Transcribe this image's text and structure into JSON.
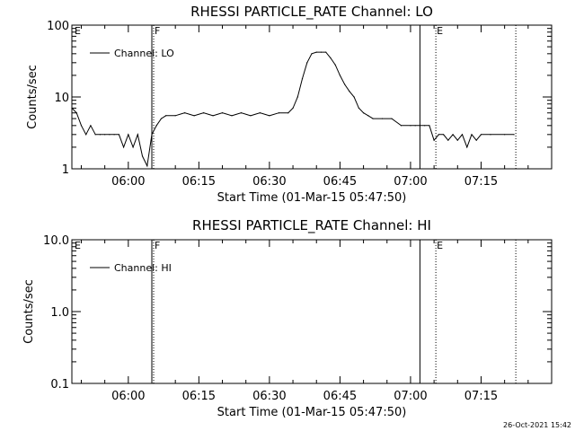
{
  "chart_data": [
    {
      "type": "line",
      "title": "RHESSI PARTICLE_RATE Channel: LO",
      "xlabel": "Start Time (01-Mar-15 05:47:50)",
      "ylabel": "Counts/sec",
      "yscale": "log",
      "ylim": [
        1,
        100
      ],
      "yticks": [
        "1",
        "10",
        "100"
      ],
      "xlim": [
        "05:48",
        "07:30"
      ],
      "xticks": [
        "06:00",
        "06:15",
        "06:30",
        "06:45",
        "07:00",
        "07:15"
      ],
      "legend_position": "top-left",
      "grid": false,
      "series": [
        {
          "name": "Channel: LO",
          "x": [
            "05:48",
            "05:49",
            "05:50",
            "05:51",
            "05:52",
            "05:53",
            "05:54",
            "05:55",
            "05:56",
            "05:57",
            "05:58",
            "05:59",
            "06:00",
            "06:01",
            "06:02",
            "06:03",
            "06:04",
            "06:05",
            "06:06",
            "06:07",
            "06:08",
            "06:10",
            "06:12",
            "06:14",
            "06:16",
            "06:18",
            "06:20",
            "06:22",
            "06:24",
            "06:26",
            "06:28",
            "06:30",
            "06:32",
            "06:34",
            "06:35",
            "06:36",
            "06:37",
            "06:38",
            "06:39",
            "06:40",
            "06:41",
            "06:42",
            "06:43",
            "06:44",
            "06:45",
            "06:46",
            "06:47",
            "06:48",
            "06:49",
            "06:50",
            "06:51",
            "06:52",
            "06:54",
            "06:56",
            "06:58",
            "07:00",
            "07:01",
            "07:02",
            "07:03",
            "07:04",
            "07:05",
            "07:06",
            "07:07",
            "07:08",
            "07:09",
            "07:10",
            "07:11",
            "07:12",
            "07:13",
            "07:14",
            "07:15",
            "07:17",
            "07:20",
            "07:22"
          ],
          "y": [
            7,
            6,
            4,
            3,
            4,
            3,
            3,
            3,
            3,
            3,
            3,
            2,
            3,
            2,
            3,
            1.5,
            1.1,
            3,
            4,
            5,
            5.5,
            5.5,
            6,
            5.5,
            6,
            5.5,
            6,
            5.5,
            6,
            5.5,
            6,
            5.5,
            6,
            6,
            7,
            10,
            18,
            30,
            40,
            42,
            42,
            42,
            35,
            28,
            20,
            15,
            12,
            10,
            7,
            6,
            5.5,
            5,
            5,
            5,
            4,
            4,
            4,
            4,
            4,
            4,
            2.5,
            3,
            3,
            2.5,
            3,
            2.5,
            3,
            2,
            3,
            2.5,
            3,
            3,
            3,
            3
          ]
        }
      ],
      "annotations": [
        {
          "label": "E",
          "x": "05:48"
        },
        {
          "label": "F",
          "x": "06:05"
        },
        {
          "label": "E",
          "x": "07:05"
        }
      ]
    },
    {
      "type": "line",
      "title": "RHESSI PARTICLE_RATE Channel: HI",
      "xlabel": "Start Time (01-Mar-15 05:47:50)",
      "ylabel": "Counts/sec",
      "yscale": "log",
      "ylim": [
        0.1,
        10
      ],
      "yticks": [
        "0.1",
        "1.0",
        "10.0"
      ],
      "xlim": [
        "05:48",
        "07:30"
      ],
      "xticks": [
        "06:00",
        "06:15",
        "06:30",
        "06:45",
        "07:00",
        "07:15"
      ],
      "legend_position": "top-left",
      "grid": false,
      "series": [
        {
          "name": "Channel: HI",
          "x": [],
          "y": []
        }
      ],
      "annotations": [
        {
          "label": "E",
          "x": "05:48"
        },
        {
          "label": "F",
          "x": "06:05"
        },
        {
          "label": "E",
          "x": "07:05"
        }
      ]
    }
  ],
  "footer": {
    "timestamp": "26-Oct-2021 15:42"
  }
}
